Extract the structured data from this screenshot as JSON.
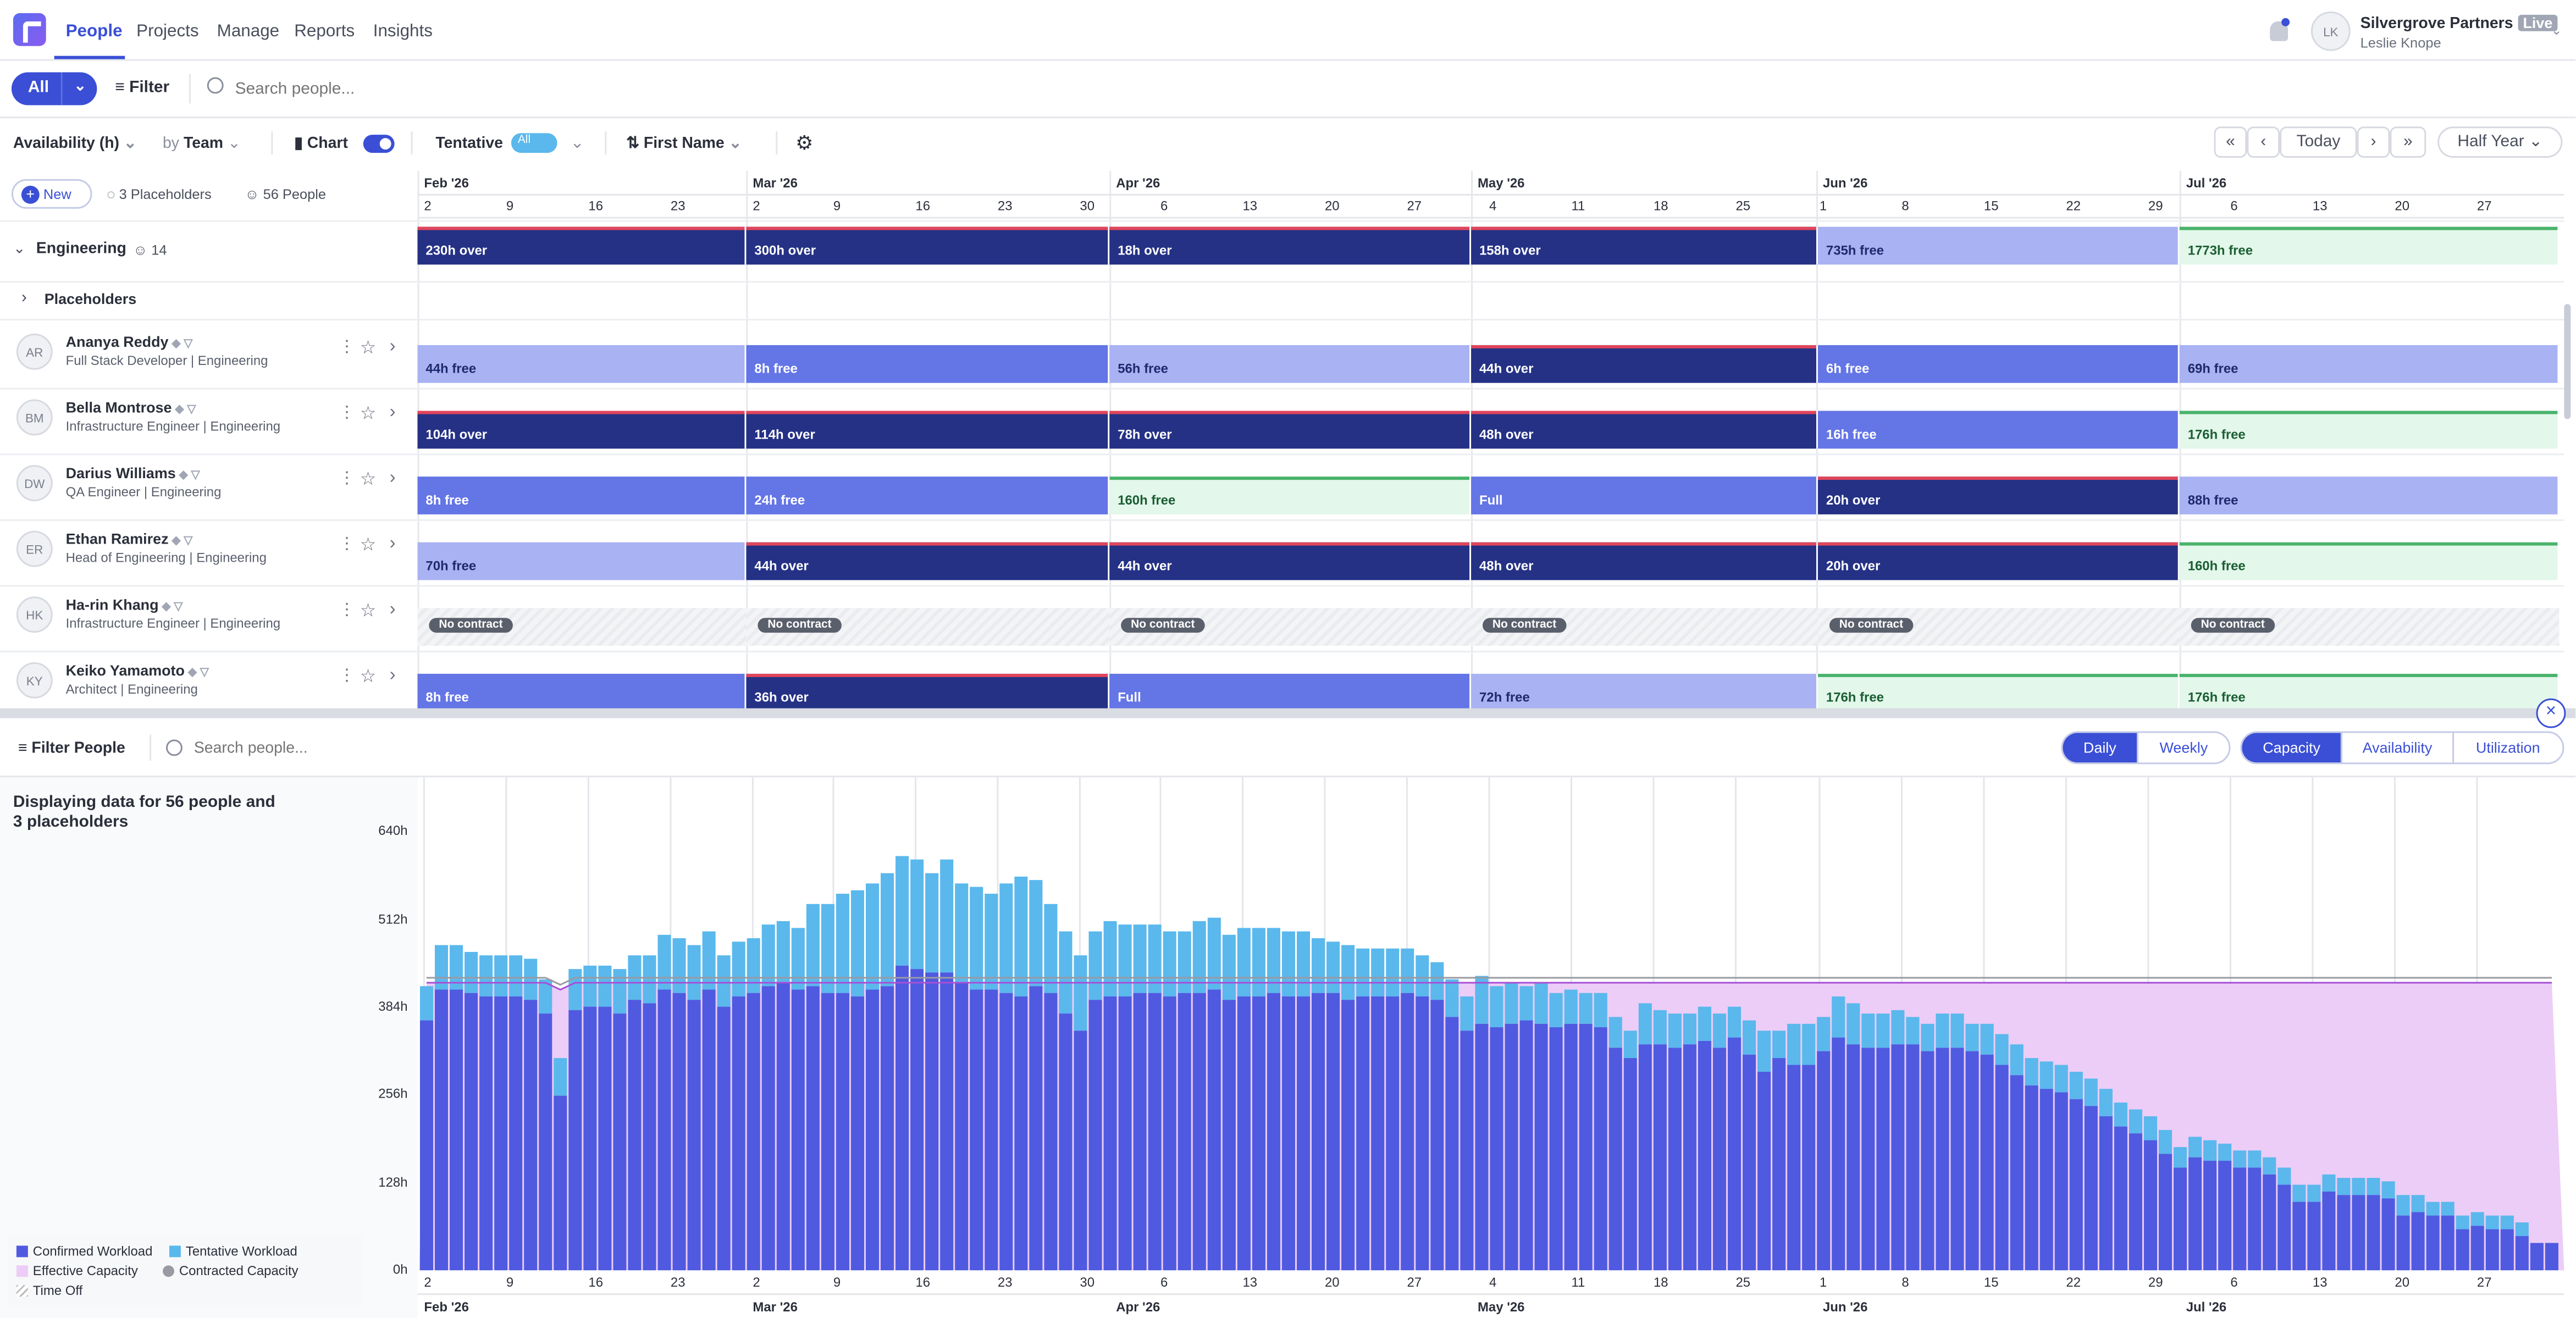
{
  "nav": {
    "items": [
      "People",
      "Projects",
      "Manage",
      "Reports",
      "Insights"
    ],
    "user": {
      "company": "Silvergrove Partners",
      "badge": "Live",
      "name": "Leslie Knope",
      "initials": "LK"
    }
  },
  "filterbar": {
    "all": "All",
    "filter": "Filter",
    "search_placeholder": "Search people..."
  },
  "toolbar": {
    "metric": "Availability (h)",
    "by": "by",
    "group": "Team",
    "chart": "Chart",
    "tentative": "Tentative",
    "tentative_value": "All",
    "sort": "First Name",
    "today": "Today",
    "range": "Half Year"
  },
  "subheader": {
    "new": "New",
    "placeholders": "3 Placeholders",
    "people": "56 People"
  },
  "months": [
    "Feb '26",
    "Mar '26",
    "Apr '26",
    "May '26",
    "Jun '26",
    "Jul '26"
  ],
  "ticks": [
    "2",
    "9",
    "16",
    "23",
    "2",
    "9",
    "16",
    "23",
    "30",
    "6",
    "13",
    "20",
    "27",
    "4",
    "11",
    "18",
    "25",
    "1",
    "8",
    "15",
    "22",
    "29",
    "6",
    "13",
    "20",
    "27"
  ],
  "group": {
    "name": "Engineering",
    "count": "14",
    "placeholders_label": "Placeholders",
    "segments": [
      {
        "text": "230h over",
        "kind": "dark",
        "flag": "red"
      },
      {
        "text": "300h over",
        "kind": "dark",
        "flag": "red"
      },
      {
        "text": "18h over",
        "kind": "dark",
        "flag": "red"
      },
      {
        "text": "158h over",
        "kind": "dark",
        "flag": "red"
      },
      {
        "text": "735h free",
        "kind": "light",
        "flag": ""
      },
      {
        "text": "1773h free",
        "kind": "green",
        "flag": "green"
      }
    ]
  },
  "people": [
    {
      "initials": "AR",
      "name": "Ananya Reddy",
      "role": "Full Stack Developer | Engineering",
      "segments": [
        {
          "text": "44h free",
          "kind": "light",
          "flag": ""
        },
        {
          "text": "8h free",
          "kind": "mid",
          "flag": ""
        },
        {
          "text": "56h free",
          "kind": "light",
          "flag": ""
        },
        {
          "text": "44h over",
          "kind": "dark",
          "flag": "red"
        },
        {
          "text": "6h free",
          "kind": "mid",
          "flag": ""
        },
        {
          "text": "69h free",
          "kind": "light",
          "flag": ""
        }
      ]
    },
    {
      "initials": "BM",
      "name": "Bella Montrose",
      "role": "Infrastructure Engineer | Engineering",
      "segments": [
        {
          "text": "104h over",
          "kind": "dark",
          "flag": "red"
        },
        {
          "text": "114h over",
          "kind": "dark",
          "flag": "red"
        },
        {
          "text": "78h over",
          "kind": "dark",
          "flag": "red"
        },
        {
          "text": "48h over",
          "kind": "dark",
          "flag": "red"
        },
        {
          "text": "16h free",
          "kind": "mid",
          "flag": ""
        },
        {
          "text": "176h free",
          "kind": "green",
          "flag": "green"
        }
      ]
    },
    {
      "initials": "DW",
      "name": "Darius Williams",
      "role": "QA Engineer | Engineering",
      "segments": [
        {
          "text": "8h free",
          "kind": "mid",
          "flag": ""
        },
        {
          "text": "24h free",
          "kind": "mid",
          "flag": ""
        },
        {
          "text": "160h free",
          "kind": "green",
          "flag": "green"
        },
        {
          "text": "Full",
          "kind": "mid",
          "flag": ""
        },
        {
          "text": "20h over",
          "kind": "dark",
          "flag": "red"
        },
        {
          "text": "88h free",
          "kind": "light",
          "flag": ""
        }
      ]
    },
    {
      "initials": "ER",
      "name": "Ethan Ramirez",
      "role": "Head of Engineering | Engineering",
      "segments": [
        {
          "text": "70h free",
          "kind": "light",
          "flag": ""
        },
        {
          "text": "44h over",
          "kind": "dark",
          "flag": "red"
        },
        {
          "text": "44h over",
          "kind": "dark",
          "flag": "red"
        },
        {
          "text": "48h over",
          "kind": "dark",
          "flag": "red"
        },
        {
          "text": "20h over",
          "kind": "dark",
          "flag": "red"
        },
        {
          "text": "160h free",
          "kind": "green",
          "flag": "green"
        }
      ]
    },
    {
      "initials": "HK",
      "name": "Ha-rin Khang",
      "role": "Infrastructure Engineer | Engineering",
      "segments": [
        {
          "text": "No contract",
          "kind": "nc",
          "flag": ""
        },
        {
          "text": "No contract",
          "kind": "nc",
          "flag": ""
        },
        {
          "text": "No contract",
          "kind": "nc",
          "flag": ""
        },
        {
          "text": "No contract",
          "kind": "nc",
          "flag": ""
        },
        {
          "text": "No contract",
          "kind": "nc",
          "flag": ""
        },
        {
          "text": "No contract",
          "kind": "nc",
          "flag": ""
        }
      ]
    },
    {
      "initials": "KY",
      "name": "Keiko Yamamoto",
      "role": "Architect | Engineering",
      "segments": [
        {
          "text": "8h free",
          "kind": "mid",
          "flag": ""
        },
        {
          "text": "36h over",
          "kind": "dark",
          "flag": "red"
        },
        {
          "text": "Full",
          "kind": "mid",
          "flag": ""
        },
        {
          "text": "72h free",
          "kind": "light",
          "flag": ""
        },
        {
          "text": "176h free",
          "kind": "green",
          "flag": "green"
        },
        {
          "text": "176h free",
          "kind": "green",
          "flag": "green"
        }
      ]
    }
  ],
  "bottom": {
    "filter": "Filter People",
    "search_placeholder": "Search people...",
    "views": [
      "Daily",
      "Weekly"
    ],
    "modes": [
      "Capacity",
      "Availability",
      "Utilization"
    ],
    "summary": "Displaying data for 56 people and 3 placeholders"
  },
  "chart_data": {
    "type": "bar",
    "y_ticks": [
      "0h",
      "128h",
      "256h",
      "384h",
      "512h",
      "640h"
    ],
    "ylim": [
      0,
      720
    ],
    "x_ticks": [
      "2",
      "9",
      "16",
      "23",
      "2",
      "9",
      "16",
      "23",
      "30",
      "6",
      "13",
      "20",
      "27",
      "4",
      "11",
      "18",
      "25",
      "1",
      "8",
      "15",
      "22",
      "29",
      "6",
      "13",
      "20",
      "27"
    ],
    "months": [
      "Feb '26",
      "Mar '26",
      "Apr '26",
      "May '26",
      "Jun '26",
      "Jul '26"
    ],
    "legend": [
      "Confirmed Workload",
      "Tentative Workload",
      "Effective Capacity",
      "Contracted Capacity",
      "Time Off"
    ],
    "colors": {
      "confirmed": "#4f5ae0",
      "tentative": "#5ab8ec",
      "effective": "#eccdf7",
      "contracted": "#9a9aa2"
    },
    "series": [
      {
        "name": "Confirmed Workload",
        "values": [
          365,
          410,
          410,
          405,
          400,
          400,
          400,
          395,
          375,
          255,
          380,
          385,
          385,
          375,
          395,
          390,
          410,
          405,
          395,
          410,
          385,
          400,
          405,
          415,
          420,
          410,
          415,
          405,
          405,
          400,
          410,
          415,
          445,
          440,
          435,
          435,
          420,
          410,
          410,
          405,
          400,
          415,
          405,
          375,
          350,
          395,
          400,
          400,
          405,
          405,
          400,
          405,
          405,
          410,
          395,
          400,
          400,
          405,
          400,
          400,
          405,
          405,
          395,
          400,
          400,
          400,
          405,
          400,
          395,
          370,
          350,
          360,
          355,
          360,
          365,
          360,
          355,
          360,
          360,
          355,
          325,
          310,
          330,
          330,
          325,
          330,
          335,
          325,
          340,
          315,
          290,
          310,
          300,
          300,
          320,
          340,
          330,
          325,
          325,
          330,
          330,
          320,
          325,
          325,
          320,
          315,
          300,
          285,
          270,
          265,
          260,
          250,
          240,
          225,
          210,
          200,
          190,
          170,
          150,
          165,
          160,
          160,
          150,
          150,
          140,
          125,
          100,
          100,
          115,
          110,
          110,
          110,
          105,
          80,
          85,
          80,
          80,
          60,
          65,
          60,
          60,
          50,
          40,
          40
        ]
      },
      {
        "name": "Tentative Workload",
        "values": [
          50,
          65,
          65,
          60,
          60,
          60,
          60,
          60,
          50,
          55,
          60,
          60,
          60,
          65,
          65,
          70,
          80,
          80,
          80,
          85,
          75,
          80,
          80,
          90,
          90,
          90,
          120,
          130,
          145,
          155,
          155,
          165,
          160,
          160,
          145,
          165,
          145,
          150,
          140,
          160,
          175,
          155,
          130,
          120,
          110,
          100,
          110,
          105,
          100,
          100,
          95,
          90,
          105,
          105,
          95,
          100,
          100,
          95,
          95,
          95,
          80,
          75,
          80,
          70,
          70,
          70,
          65,
          60,
          55,
          55,
          50,
          70,
          60,
          60,
          50,
          60,
          50,
          50,
          45,
          50,
          45,
          40,
          60,
          50,
          50,
          45,
          50,
          50,
          45,
          50,
          60,
          40,
          60,
          60,
          50,
          60,
          60,
          50,
          50,
          50,
          40,
          40,
          50,
          50,
          40,
          45,
          45,
          45,
          40,
          40,
          40,
          40,
          40,
          40,
          35,
          35,
          35,
          35,
          30,
          30,
          30,
          25,
          25,
          25,
          25,
          25,
          25,
          25,
          25,
          25,
          25,
          25,
          25,
          30,
          25,
          20,
          20,
          20,
          20,
          20,
          20,
          20,
          0,
          0
        ]
      },
      {
        "name": "Effective Capacity",
        "values": [
          420,
          420,
          420,
          420,
          420,
          420,
          420,
          420,
          420,
          410,
          420,
          420,
          420,
          420,
          420,
          420,
          420,
          420,
          420,
          420,
          420,
          420,
          420,
          420,
          420,
          420,
          420,
          420,
          420,
          420,
          420,
          420,
          420,
          420,
          420,
          420,
          420,
          420,
          420,
          420,
          420,
          420,
          420,
          420,
          420,
          420,
          420,
          420,
          420,
          420,
          420,
          420,
          420,
          420,
          420,
          420,
          420,
          420,
          420,
          420,
          420,
          420,
          420,
          420,
          420,
          420,
          420,
          420,
          420,
          420,
          420,
          420,
          420,
          420,
          420,
          420,
          420,
          420,
          420,
          420,
          420,
          420,
          420,
          420,
          420,
          420,
          420,
          420,
          420,
          420,
          420,
          420,
          420,
          420,
          420,
          420,
          420,
          420,
          420,
          420,
          420,
          420,
          420,
          420,
          420,
          420,
          420,
          420,
          420,
          420,
          420,
          420,
          420,
          420,
          420,
          420,
          420,
          420,
          420,
          420,
          420,
          420,
          420,
          420,
          420,
          420,
          420,
          420,
          420,
          420,
          420,
          420,
          420,
          420,
          420,
          420,
          420,
          420,
          420,
          420,
          420,
          420,
          420,
          420
        ]
      }
    ]
  }
}
